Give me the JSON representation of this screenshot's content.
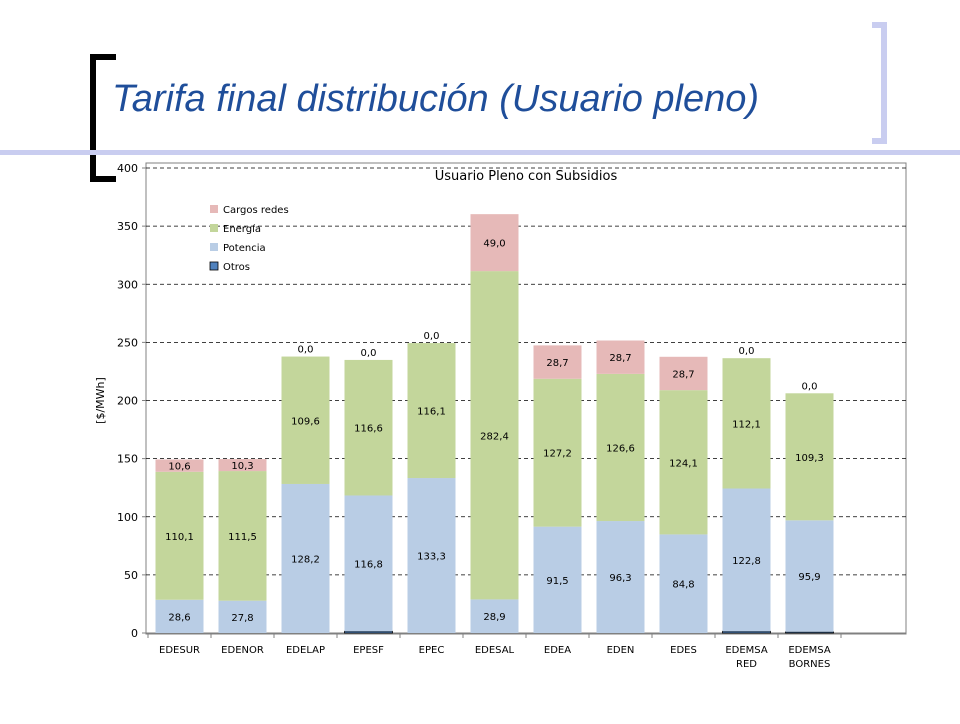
{
  "slide": {
    "title": "Tarifa final distribución (Usuario pleno)"
  },
  "colors": {
    "cargos": "#e6b9b8",
    "energia": "#c3d69b",
    "potencia": "#b9cde5",
    "otros": "#4f81bd",
    "title": "#1f4e9a",
    "decoration": "#c9cdf0"
  },
  "chart_data": {
    "type": "bar",
    "stacked": true,
    "title": "Usuario Pleno con Subsidios",
    "xlabel": "",
    "ylabel": "[$/MWh]",
    "ylim": [
      0,
      400
    ],
    "yticks": [
      0,
      50,
      100,
      150,
      200,
      250,
      300,
      350,
      400
    ],
    "grid": true,
    "legend_position": "top-left",
    "categories": [
      "EDESUR",
      "EDENOR",
      "EDELAP",
      "EPESF",
      "EPEC",
      "EDESAL",
      "EDEA",
      "EDEN",
      "EDES",
      "EDEMSA RED",
      "EDEMSA BORNES"
    ],
    "series": [
      {
        "name": "Otros",
        "color": "#4f81bd",
        "values": [
          0,
          0,
          0,
          1.5,
          0,
          0,
          0,
          0,
          0,
          1.5,
          1.0
        ],
        "labels": [
          "",
          "",
          "",
          "",
          "",
          "",
          "",
          "",
          "",
          "",
          ""
        ]
      },
      {
        "name": "Potencia",
        "color": "#b9cde5",
        "values": [
          28.6,
          27.8,
          128.2,
          116.8,
          133.3,
          28.9,
          91.5,
          96.3,
          84.8,
          122.8,
          95.9
        ],
        "labels": [
          "28,6",
          "27,8",
          "128,2",
          "116,8",
          "133,3",
          "28,9",
          "91,5",
          "96,3",
          "84,8",
          "122,8",
          "95,9"
        ]
      },
      {
        "name": "Energía",
        "color": "#c3d69b",
        "values": [
          110.1,
          111.5,
          109.6,
          116.6,
          116.1,
          282.4,
          127.2,
          126.6,
          124.1,
          112.1,
          109.3
        ],
        "labels": [
          "110,1",
          "111,5",
          "109,6",
          "116,6",
          "116,1",
          "282,4",
          "127,2",
          "126,6",
          "124,1",
          "112,1",
          "109,3"
        ]
      },
      {
        "name": "Cargos redes",
        "color": "#e6b9b8",
        "values": [
          10.6,
          10.3,
          0.0,
          0.0,
          0.0,
          49.0,
          28.7,
          28.7,
          28.7,
          0.0,
          0.0
        ],
        "labels": [
          "10,6",
          "10,3",
          "0,0",
          "0,0",
          "0,0",
          "49,0",
          "28,7",
          "28,7",
          "28,7",
          "0,0",
          "0,0"
        ]
      }
    ],
    "legend_order": [
      "Cargos redes",
      "Energía",
      "Potencia",
      "Otros"
    ]
  }
}
